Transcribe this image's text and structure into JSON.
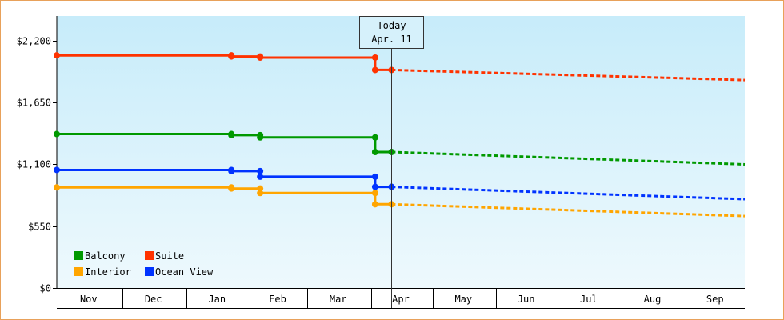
{
  "chart_data": {
    "type": "line",
    "title": "",
    "xlabel": "",
    "ylabel": "",
    "currency_prefix": "$",
    "ylim": [
      0,
      2420
    ],
    "y_ticks": [
      0,
      550,
      1100,
      1650,
      2200
    ],
    "y_tick_labels": [
      "$0",
      "$550",
      "$1,100",
      "$1,650",
      "$2,200"
    ],
    "x_range": [
      "2024-10-30",
      "2025-09-30"
    ],
    "month_ticks": [
      {
        "label": "Nov",
        "start": "2024-10-30",
        "end": "2024-11-30"
      },
      {
        "label": "Dec",
        "start": "2024-12-01",
        "end": "2024-12-31"
      },
      {
        "label": "Jan",
        "start": "2025-01-01",
        "end": "2025-01-31"
      },
      {
        "label": "Feb",
        "start": "2025-02-01",
        "end": "2025-02-28"
      },
      {
        "label": "Mar",
        "start": "2025-03-01",
        "end": "2025-03-31"
      },
      {
        "label": "Apr",
        "start": "2025-04-01",
        "end": "2025-04-30"
      },
      {
        "label": "May",
        "start": "2025-05-01",
        "end": "2025-05-31"
      },
      {
        "label": "Jun",
        "start": "2025-06-01",
        "end": "2025-06-30"
      },
      {
        "label": "Jul",
        "start": "2025-07-01",
        "end": "2025-07-31"
      },
      {
        "label": "Aug",
        "start": "2025-08-01",
        "end": "2025-08-31"
      },
      {
        "label": "Sep",
        "start": "2025-09-01",
        "end": "2025-09-30"
      }
    ],
    "today": {
      "label_line1": "Today",
      "label_line2": "Apr. 11",
      "date": "2025-04-11"
    },
    "legend_placement": "bottom-left",
    "series": [
      {
        "name": "Suite",
        "color": "#ff3300",
        "history": [
          [
            "2024-10-30",
            2070
          ],
          [
            "2025-01-23",
            2070
          ],
          [
            "2025-01-23",
            2060
          ],
          [
            "2025-02-06",
            2060
          ],
          [
            "2025-02-06",
            2050
          ],
          [
            "2025-04-03",
            2050
          ],
          [
            "2025-04-03",
            1940
          ],
          [
            "2025-04-11",
            1940
          ]
        ],
        "forecast": [
          [
            "2025-04-11",
            1940
          ],
          [
            "2025-09-30",
            1850
          ]
        ]
      },
      {
        "name": "Balcony",
        "color": "#009900",
        "history": [
          [
            "2024-10-30",
            1370
          ],
          [
            "2025-01-23",
            1370
          ],
          [
            "2025-01-23",
            1360
          ],
          [
            "2025-02-06",
            1360
          ],
          [
            "2025-02-06",
            1340
          ],
          [
            "2025-04-03",
            1340
          ],
          [
            "2025-04-03",
            1210
          ],
          [
            "2025-04-11",
            1210
          ]
        ],
        "forecast": [
          [
            "2025-04-11",
            1210
          ],
          [
            "2025-09-30",
            1100
          ]
        ]
      },
      {
        "name": "Ocean View",
        "color": "#0033ff",
        "history": [
          [
            "2024-10-30",
            1050
          ],
          [
            "2025-01-23",
            1050
          ],
          [
            "2025-01-23",
            1040
          ],
          [
            "2025-02-06",
            1040
          ],
          [
            "2025-02-06",
            990
          ],
          [
            "2025-04-03",
            990
          ],
          [
            "2025-04-03",
            900
          ],
          [
            "2025-04-11",
            900
          ]
        ],
        "forecast": [
          [
            "2025-04-11",
            900
          ],
          [
            "2025-09-30",
            790
          ]
        ]
      },
      {
        "name": "Interior",
        "color": "#ffa500",
        "history": [
          [
            "2024-10-30",
            895
          ],
          [
            "2025-01-23",
            895
          ],
          [
            "2025-01-23",
            885
          ],
          [
            "2025-02-06",
            885
          ],
          [
            "2025-02-06",
            845
          ],
          [
            "2025-04-03",
            845
          ],
          [
            "2025-04-03",
            745
          ],
          [
            "2025-04-11",
            745
          ]
        ],
        "forecast": [
          [
            "2025-04-11",
            745
          ],
          [
            "2025-09-30",
            640
          ]
        ]
      }
    ],
    "legend": [
      {
        "name": "Balcony",
        "color": "#009900"
      },
      {
        "name": "Suite",
        "color": "#ff3300"
      },
      {
        "name": "Interior",
        "color": "#ffa500"
      },
      {
        "name": "Ocean View",
        "color": "#0033ff"
      }
    ]
  }
}
